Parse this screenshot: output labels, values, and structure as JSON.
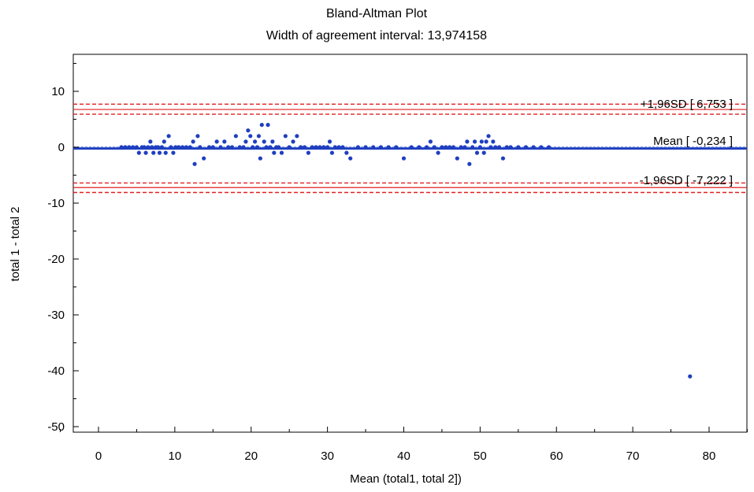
{
  "chart_data": {
    "type": "scatter",
    "title": "Bland-Altman Plot",
    "subtitle": "Width of agreement interval: 13,974158",
    "xlabel": "Mean (total1, total 2])",
    "ylabel": "total 1 - total 2",
    "xlim": [
      -5,
      85
    ],
    "ylim": [
      -52,
      18
    ],
    "xticks": [
      0,
      10,
      20,
      30,
      40,
      50,
      60,
      70,
      80
    ],
    "yticks": [
      10,
      0,
      -10,
      -20,
      -30,
      -40,
      -50
    ],
    "grid": false,
    "colors": {
      "points": "#1f3fbf",
      "mean_line": "#1f3fbf",
      "limit_lines": "#e02020"
    },
    "reference_lines": {
      "upper": {
        "label": "+1,96SD [ 6,753 ]",
        "value": 6.753,
        "band": [
          5.9,
          7.7
        ]
      },
      "mean": {
        "label": "Mean [ -0,234 ]",
        "value": -0.234
      },
      "lower": {
        "label": "-1,96SD [ -7,222 ]",
        "value": -7.222,
        "band": [
          -6.4,
          -8.1
        ]
      }
    },
    "points": [
      [
        3,
        0
      ],
      [
        3.5,
        0
      ],
      [
        4,
        0
      ],
      [
        4.5,
        0
      ],
      [
        5,
        0
      ],
      [
        5.3,
        -1
      ],
      [
        5.7,
        0
      ],
      [
        6,
        0
      ],
      [
        6.2,
        -1
      ],
      [
        6.5,
        0
      ],
      [
        6.8,
        1
      ],
      [
        7,
        0
      ],
      [
        7.2,
        -1
      ],
      [
        7.5,
        0
      ],
      [
        7.8,
        0
      ],
      [
        8,
        -1
      ],
      [
        8.3,
        0
      ],
      [
        8.6,
        1
      ],
      [
        8.8,
        -1
      ],
      [
        9.2,
        2
      ],
      [
        9.5,
        0
      ],
      [
        9.8,
        -1
      ],
      [
        10.1,
        0
      ],
      [
        10.5,
        0
      ],
      [
        11,
        0
      ],
      [
        11.5,
        0
      ],
      [
        12,
        0
      ],
      [
        12.4,
        1
      ],
      [
        12.6,
        -3
      ],
      [
        13,
        2
      ],
      [
        13.3,
        0
      ],
      [
        13.8,
        -2
      ],
      [
        14.5,
        0
      ],
      [
        15,
        0
      ],
      [
        15.5,
        1
      ],
      [
        16,
        0
      ],
      [
        16.5,
        1
      ],
      [
        17,
        0
      ],
      [
        17.5,
        0
      ],
      [
        18,
        2
      ],
      [
        18.5,
        0
      ],
      [
        19,
        0
      ],
      [
        19.3,
        1
      ],
      [
        19.6,
        3
      ],
      [
        19.9,
        2
      ],
      [
        20.2,
        0
      ],
      [
        20.5,
        1
      ],
      [
        20.8,
        0
      ],
      [
        21,
        2
      ],
      [
        21.2,
        -2
      ],
      [
        21.4,
        4
      ],
      [
        21.7,
        1
      ],
      [
        22,
        0
      ],
      [
        22.2,
        4
      ],
      [
        22.5,
        0
      ],
      [
        22.8,
        1
      ],
      [
        23,
        -1
      ],
      [
        23.3,
        0
      ],
      [
        23.6,
        0
      ],
      [
        24,
        -1
      ],
      [
        24.5,
        2
      ],
      [
        25,
        0
      ],
      [
        25.5,
        1
      ],
      [
        26,
        2
      ],
      [
        26.5,
        0
      ],
      [
        27,
        0
      ],
      [
        27.5,
        -1
      ],
      [
        28,
        0
      ],
      [
        28.5,
        0
      ],
      [
        29,
        0
      ],
      [
        29.5,
        0
      ],
      [
        30,
        0
      ],
      [
        30.3,
        1
      ],
      [
        30.6,
        -1
      ],
      [
        31,
        0
      ],
      [
        31.5,
        0
      ],
      [
        32,
        0
      ],
      [
        32.5,
        -1
      ],
      [
        33,
        -2
      ],
      [
        34,
        0
      ],
      [
        35,
        0
      ],
      [
        36,
        0
      ],
      [
        37,
        0
      ],
      [
        38,
        0
      ],
      [
        39,
        0
      ],
      [
        40,
        -2
      ],
      [
        41,
        0
      ],
      [
        42,
        0
      ],
      [
        43,
        0
      ],
      [
        43.5,
        1
      ],
      [
        44,
        0
      ],
      [
        44.5,
        -1
      ],
      [
        45,
        0
      ],
      [
        45.5,
        0
      ],
      [
        46,
        0
      ],
      [
        46.5,
        0
      ],
      [
        47,
        -2
      ],
      [
        47.5,
        0
      ],
      [
        48,
        0
      ],
      [
        48.3,
        1
      ],
      [
        48.6,
        -3
      ],
      [
        49,
        0
      ],
      [
        49.3,
        1
      ],
      [
        49.6,
        -1
      ],
      [
        50,
        0
      ],
      [
        50.2,
        1
      ],
      [
        50.5,
        -1
      ],
      [
        50.8,
        1
      ],
      [
        51.1,
        2
      ],
      [
        51.4,
        0
      ],
      [
        51.7,
        1
      ],
      [
        52,
        0
      ],
      [
        52.5,
        0
      ],
      [
        53,
        -2
      ],
      [
        53.5,
        0
      ],
      [
        54,
        0
      ],
      [
        55,
        0
      ],
      [
        56,
        0
      ],
      [
        57,
        0
      ],
      [
        58,
        0
      ],
      [
        59,
        0
      ],
      [
        77.5,
        -41
      ]
    ]
  }
}
